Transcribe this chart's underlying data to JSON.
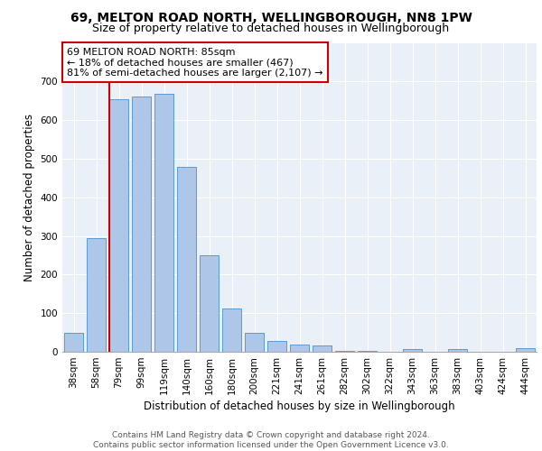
{
  "title": "69, MELTON ROAD NORTH, WELLINGBOROUGH, NN8 1PW",
  "subtitle": "Size of property relative to detached houses in Wellingborough",
  "xlabel": "Distribution of detached houses by size in Wellingborough",
  "ylabel": "Number of detached properties",
  "bar_labels": [
    "38sqm",
    "58sqm",
    "79sqm",
    "99sqm",
    "119sqm",
    "140sqm",
    "160sqm",
    "180sqm",
    "200sqm",
    "221sqm",
    "241sqm",
    "261sqm",
    "282sqm",
    "302sqm",
    "322sqm",
    "343sqm",
    "363sqm",
    "383sqm",
    "403sqm",
    "424sqm",
    "444sqm"
  ],
  "bar_values": [
    48,
    295,
    655,
    660,
    667,
    478,
    251,
    113,
    50,
    28,
    18,
    17,
    3,
    2,
    0,
    7,
    0,
    8,
    0,
    0,
    10
  ],
  "bar_color": "#aec6e8",
  "bar_edge_color": "#5b9bd5",
  "vline_index": 2,
  "vline_color": "#cc0000",
  "annotation_text": "69 MELTON ROAD NORTH: 85sqm\n← 18% of detached houses are smaller (467)\n81% of semi-detached houses are larger (2,107) →",
  "annotation_box_color": "#ffffff",
  "annotation_box_edge_color": "#cc0000",
  "ylim": [
    0,
    800
  ],
  "yticks": [
    0,
    100,
    200,
    300,
    400,
    500,
    600,
    700
  ],
  "background_color": "#eaf0f8",
  "footer_text": "Contains HM Land Registry data © Crown copyright and database right 2024.\nContains public sector information licensed under the Open Government Licence v3.0.",
  "title_fontsize": 10,
  "subtitle_fontsize": 9,
  "axis_label_fontsize": 8.5,
  "tick_fontsize": 7.5,
  "annotation_fontsize": 8,
  "footer_fontsize": 6.5
}
